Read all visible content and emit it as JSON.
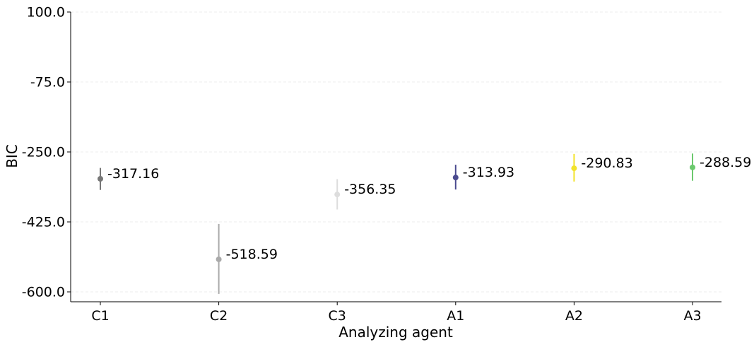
{
  "chart_data": {
    "type": "scatter",
    "title": "",
    "xlabel": "Analyzing agent",
    "ylabel": "BIC",
    "categories": [
      "C1",
      "C2",
      "C3",
      "A1",
      "A2",
      "A3"
    ],
    "values": [
      -317.16,
      -518.59,
      -356.35,
      -313.93,
      -290.83,
      -288.59
    ],
    "error_low": [
      -345,
      -605,
      -394,
      -344,
      -324,
      -322
    ],
    "error_high": [
      -290,
      -430,
      -318,
      -282,
      -255,
      -254
    ],
    "value_labels": [
      "-317.16",
      "-518.59",
      "-356.35",
      "-313.93",
      "-290.83",
      "-288.59"
    ],
    "colors": [
      "#777777",
      "#aaaaaa",
      "#dddddd",
      "#4b4b8f",
      "#f2e32c",
      "#6cc96e"
    ],
    "y_ticks": [
      100.0,
      -75.0,
      -250.0,
      -425.0,
      -600.0
    ],
    "y_tick_labels": [
      "100.0",
      "-75.0",
      "-250.0",
      "-425.0",
      "-600.0"
    ],
    "ylim": [
      -625,
      100
    ],
    "grid": "horizontal dashed",
    "legend": "none"
  }
}
